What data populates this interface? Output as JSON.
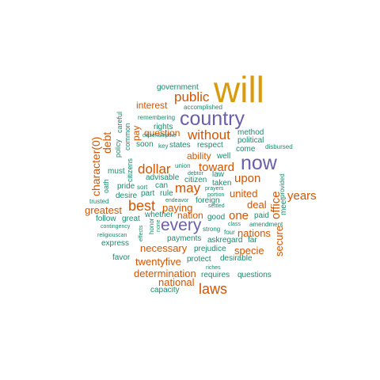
{
  "palette": {
    "gold": "#d99a0b",
    "purple": "#6a5fa8",
    "orange": "#d35400",
    "green": "#1b8a6b"
  },
  "words": [
    {
      "text": "will",
      "color": "gold"
    },
    {
      "text": "country",
      "color": "purple"
    },
    {
      "text": "now",
      "color": "purple"
    },
    {
      "text": "every",
      "color": "purple"
    },
    {
      "text": "laws",
      "color": "orange"
    },
    {
      "text": "best",
      "color": "orange"
    },
    {
      "text": "dollar",
      "color": "orange"
    },
    {
      "text": "may",
      "color": "orange"
    },
    {
      "text": "public",
      "color": "orange"
    },
    {
      "text": "without",
      "color": "orange"
    },
    {
      "text": "toward",
      "color": "orange"
    },
    {
      "text": "upon",
      "color": "orange"
    },
    {
      "text": "years",
      "color": "orange"
    },
    {
      "text": "one",
      "color": "orange"
    },
    {
      "text": "office",
      "color": "orange"
    },
    {
      "text": "character(0)",
      "color": "orange"
    },
    {
      "text": "debt",
      "color": "orange"
    },
    {
      "text": "greatest",
      "color": "orange"
    },
    {
      "text": "paying",
      "color": "orange"
    },
    {
      "text": "united",
      "color": "orange"
    },
    {
      "text": "deal",
      "color": "orange"
    },
    {
      "text": "nations",
      "color": "orange"
    },
    {
      "text": "secure",
      "color": "orange"
    },
    {
      "text": "specie",
      "color": "orange"
    },
    {
      "text": "necessary",
      "color": "orange"
    },
    {
      "text": "twentyfive",
      "color": "orange"
    },
    {
      "text": "determination",
      "color": "orange"
    },
    {
      "text": "national",
      "color": "orange"
    },
    {
      "text": "interest",
      "color": "orange"
    },
    {
      "text": "question",
      "color": "orange"
    },
    {
      "text": "ability",
      "color": "orange"
    },
    {
      "text": "nation",
      "color": "orange"
    },
    {
      "text": "pay",
      "color": "orange"
    },
    {
      "text": "government",
      "color": "green"
    },
    {
      "text": "accomplished",
      "color": "green"
    },
    {
      "text": "remembering",
      "color": "green"
    },
    {
      "text": "careful",
      "color": "green"
    },
    {
      "text": "common",
      "color": "green"
    },
    {
      "text": "policy",
      "color": "green"
    },
    {
      "text": "rights",
      "color": "green"
    },
    {
      "text": "citizenshipthe",
      "color": "green"
    },
    {
      "text": "soon",
      "color": "green"
    },
    {
      "text": "key",
      "color": "green"
    },
    {
      "text": "states",
      "color": "green"
    },
    {
      "text": "respect",
      "color": "green"
    },
    {
      "text": "method",
      "color": "green"
    },
    {
      "text": "political",
      "color": "green"
    },
    {
      "text": "come",
      "color": "green"
    },
    {
      "text": "disbursed",
      "color": "green"
    },
    {
      "text": "well",
      "color": "green"
    },
    {
      "text": "citizens",
      "color": "green"
    },
    {
      "text": "must",
      "color": "green"
    },
    {
      "text": "oath",
      "color": "green"
    },
    {
      "text": "advisable",
      "color": "green"
    },
    {
      "text": "union",
      "color": "green"
    },
    {
      "text": "debtor",
      "color": "green"
    },
    {
      "text": "citizen",
      "color": "green"
    },
    {
      "text": "law",
      "color": "green"
    },
    {
      "text": "taken",
      "color": "green"
    },
    {
      "text": "provided",
      "color": "green"
    },
    {
      "text": "sort",
      "color": "green"
    },
    {
      "text": "can",
      "color": "green"
    },
    {
      "text": "prayers",
      "color": "green"
    },
    {
      "text": "pride",
      "color": "green"
    },
    {
      "text": "part",
      "color": "green"
    },
    {
      "text": "desire",
      "color": "green"
    },
    {
      "text": "rule",
      "color": "green"
    },
    {
      "text": "endeavor",
      "color": "green"
    },
    {
      "text": "foreign",
      "color": "green"
    },
    {
      "text": "trusted",
      "color": "green"
    },
    {
      "text": "settled",
      "color": "green"
    },
    {
      "text": "meet",
      "color": "green"
    },
    {
      "text": "follow",
      "color": "green"
    },
    {
      "text": "great",
      "color": "green"
    },
    {
      "text": "whether",
      "color": "green"
    },
    {
      "text": "good",
      "color": "green"
    },
    {
      "text": "paid",
      "color": "green"
    },
    {
      "text": "contingency",
      "color": "green"
    },
    {
      "text": "honor",
      "color": "green"
    },
    {
      "text": "none",
      "color": "green"
    },
    {
      "text": "strong",
      "color": "green"
    },
    {
      "text": "four",
      "color": "green"
    },
    {
      "text": "class",
      "color": "green"
    },
    {
      "text": "amendment",
      "color": "green"
    },
    {
      "text": "religiouscan",
      "color": "green"
    },
    {
      "text": "effects",
      "color": "green"
    },
    {
      "text": "payments",
      "color": "green"
    },
    {
      "text": "askregard",
      "color": "green"
    },
    {
      "text": "far",
      "color": "green"
    },
    {
      "text": "express",
      "color": "green"
    },
    {
      "text": "prejudice",
      "color": "green"
    },
    {
      "text": "favor",
      "color": "green"
    },
    {
      "text": "protect",
      "color": "green"
    },
    {
      "text": "desirable",
      "color": "green"
    },
    {
      "text": "riches",
      "color": "green"
    },
    {
      "text": "requires",
      "color": "green"
    },
    {
      "text": "questions",
      "color": "green"
    },
    {
      "text": "capacity",
      "color": "green"
    },
    {
      "text": "portion",
      "color": "green"
    }
  ]
}
